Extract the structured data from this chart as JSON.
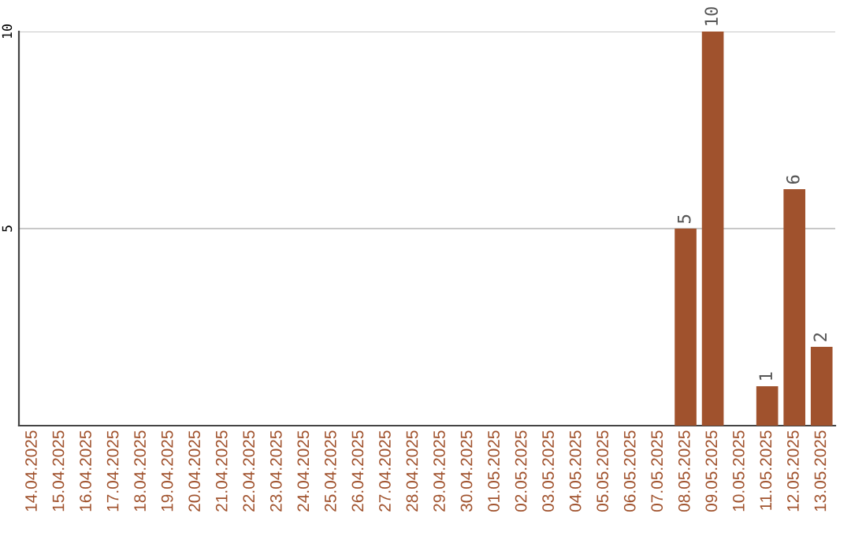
{
  "chart_data": {
    "type": "bar",
    "categories": [
      "14.04.2025",
      "15.04.2025",
      "16.04.2025",
      "17.04.2025",
      "18.04.2025",
      "19.04.2025",
      "20.04.2025",
      "21.04.2025",
      "22.04.2025",
      "23.04.2025",
      "24.04.2025",
      "25.04.2025",
      "26.04.2025",
      "27.04.2025",
      "28.04.2025",
      "29.04.2025",
      "30.04.2025",
      "01.05.2025",
      "02.05.2025",
      "03.05.2025",
      "04.05.2025",
      "05.05.2025",
      "06.05.2025",
      "07.05.2025",
      "08.05.2025",
      "09.05.2025",
      "10.05.2025",
      "11.05.2025",
      "12.05.2025",
      "13.05.2025"
    ],
    "values": [
      0,
      0,
      0,
      0,
      0,
      0,
      0,
      0,
      0,
      0,
      0,
      0,
      0,
      0,
      0,
      0,
      0,
      0,
      0,
      0,
      0,
      0,
      0,
      0,
      5,
      10,
      0,
      1,
      6,
      2
    ],
    "value_labels": [
      null,
      null,
      null,
      null,
      null,
      null,
      null,
      null,
      null,
      null,
      null,
      null,
      null,
      null,
      null,
      null,
      null,
      null,
      null,
      null,
      null,
      null,
      null,
      null,
      "5",
      "10",
      null,
      "1",
      "6",
      "2"
    ],
    "color": "#a0522d",
    "ylim": [
      0,
      10
    ],
    "yticks": [
      5,
      10
    ],
    "grid": "y"
  }
}
